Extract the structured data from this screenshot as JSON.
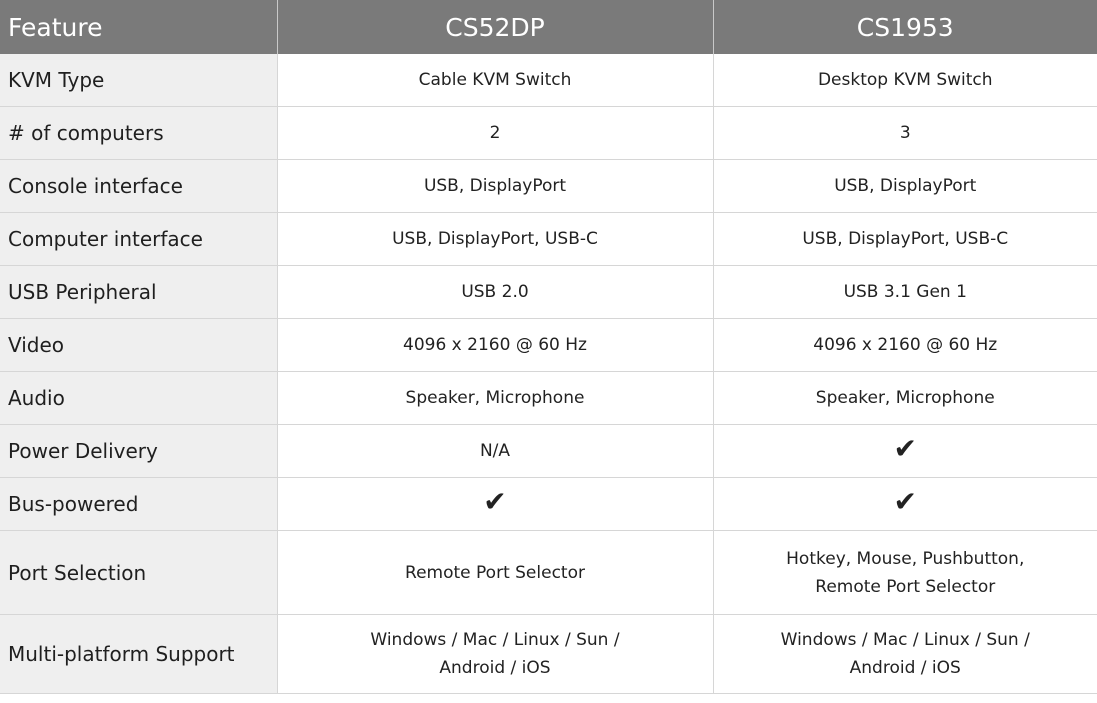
{
  "table": {
    "header": {
      "feature": "Feature",
      "products": [
        "CS52DP",
        "CS1953"
      ]
    },
    "rows": [
      {
        "feature": "KVM Type",
        "values": [
          {
            "text": "Cable KVM Switch"
          },
          {
            "text": "Desktop KVM Switch"
          }
        ]
      },
      {
        "feature": "# of computers",
        "values": [
          {
            "text": "2"
          },
          {
            "text": "3"
          }
        ]
      },
      {
        "feature": "Console interface",
        "values": [
          {
            "text": "USB, DisplayPort"
          },
          {
            "text": "USB, DisplayPort"
          }
        ]
      },
      {
        "feature": "Computer interface",
        "values": [
          {
            "text": "USB, DisplayPort, USB-C"
          },
          {
            "text": "USB, DisplayPort, USB-C"
          }
        ]
      },
      {
        "feature": "USB Peripheral",
        "values": [
          {
            "text": "USB 2.0"
          },
          {
            "text": "USB 3.1 Gen 1"
          }
        ]
      },
      {
        "feature": "Video",
        "values": [
          {
            "text": "4096 x 2160 @ 60 Hz"
          },
          {
            "text": "4096 x 2160 @ 60 Hz"
          }
        ]
      },
      {
        "feature": "Audio",
        "values": [
          {
            "text": "Speaker, Microphone"
          },
          {
            "text": "Speaker, Microphone"
          }
        ]
      },
      {
        "feature": "Power Delivery",
        "values": [
          {
            "text": "N/A"
          },
          {
            "check": true,
            "text": "✔"
          }
        ]
      },
      {
        "feature": "Bus-powered",
        "values": [
          {
            "check": true,
            "text": "✔"
          },
          {
            "check": true,
            "text": "✔"
          }
        ]
      },
      {
        "feature": "Port Selection",
        "values": [
          {
            "text": "Remote Port Selector"
          },
          {
            "lines": [
              "Hotkey, Mouse, Pushbutton,",
              "Remote Port Selector"
            ]
          }
        ]
      },
      {
        "feature": "Multi-platform Support",
        "values": [
          {
            "lines": [
              "Windows / Mac / Linux / Sun /",
              "Android / iOS"
            ]
          },
          {
            "lines": [
              "Windows / Mac / Linux / Sun /",
              "Android / iOS"
            ]
          }
        ]
      }
    ]
  },
  "icons": {
    "check": "checkmark-icon"
  },
  "colors": {
    "header_bg": "#7a7a7a",
    "header_text": "#ffffff",
    "feature_bg": "#efefef",
    "border": "#d6d6d6"
  }
}
